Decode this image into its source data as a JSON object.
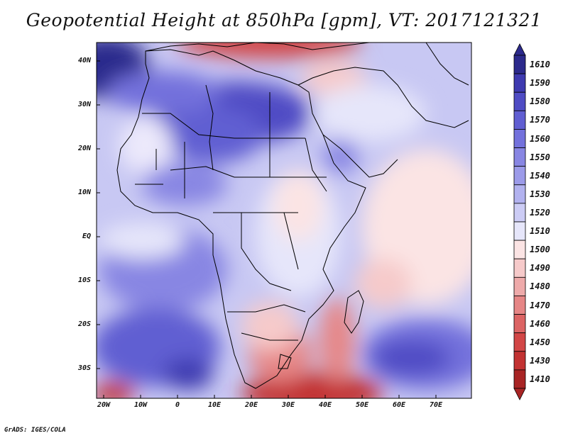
{
  "title": "Geopotential Height at 850hPa [gpm], VT: 2017121321",
  "credit": "GrADS: IGES/COLA",
  "lat_labels": [
    "40N",
    "30N",
    "20N",
    "10N",
    "EQ",
    "10S",
    "20S",
    "30S"
  ],
  "lon_labels": [
    "20W",
    "10W",
    "0",
    "10E",
    "20E",
    "30E",
    "40E",
    "50E",
    "60E",
    "70E"
  ],
  "colorbar": {
    "labels": [
      "1610",
      "1590",
      "1580",
      "1570",
      "1560",
      "1550",
      "1540",
      "1530",
      "1520",
      "1510",
      "1500",
      "1490",
      "1480",
      "1470",
      "1460",
      "1450",
      "1430",
      "1410"
    ],
    "colors": [
      "#2c2a8c",
      "#3e3ab0",
      "#4f4cc4",
      "#605ed2",
      "#7371dc",
      "#8886e3",
      "#9c9be9",
      "#b2b2ef",
      "#ccccf5",
      "#e6e6fa",
      "#fbe4e4",
      "#f6caca",
      "#eeaaaa",
      "#e68686",
      "#dc6464",
      "#d24646",
      "#c23232",
      "#a82424"
    ]
  }
}
